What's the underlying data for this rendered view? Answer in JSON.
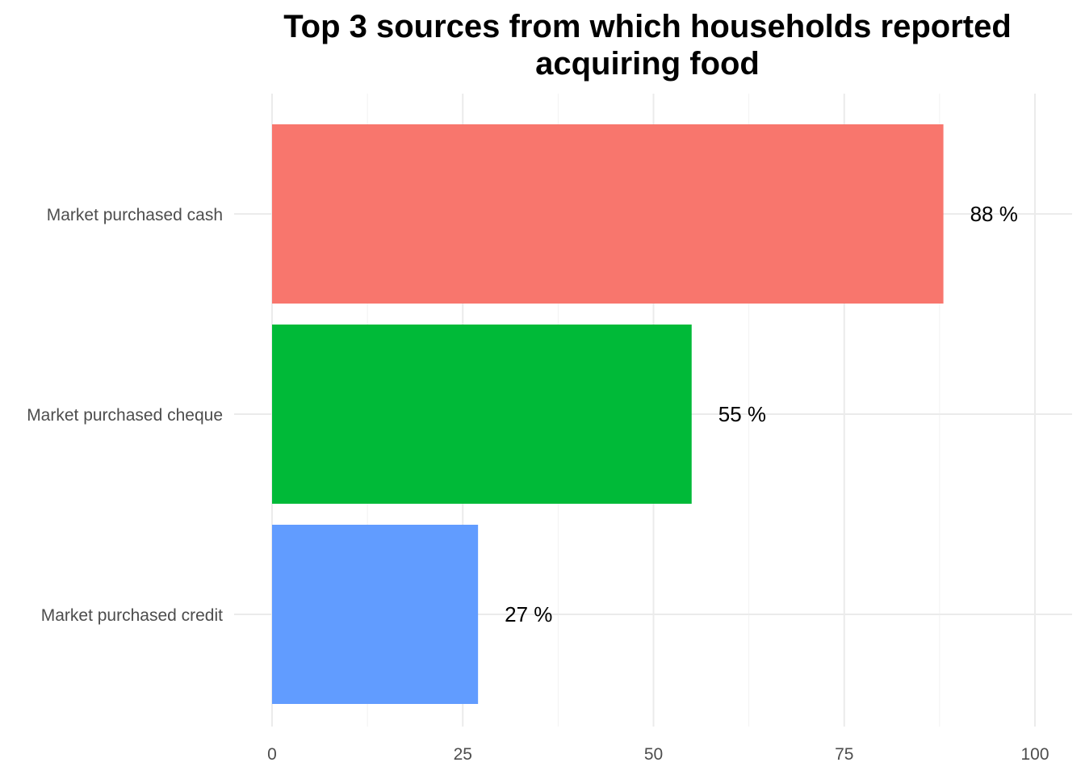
{
  "chart_data": {
    "type": "bar",
    "orientation": "horizontal",
    "title_lines": [
      "Top 3 sources from which households reported",
      "acquiring food"
    ],
    "categories": [
      "Market purchased cash",
      "Market purchased cheque",
      "Market purchased credit"
    ],
    "values": [
      88,
      55,
      27
    ],
    "data_labels": [
      "88 %",
      "55 %",
      "27 %"
    ],
    "colors": [
      "#F8766D",
      "#00BA38",
      "#619CFF"
    ],
    "xlim": [
      0,
      100
    ],
    "x_ticks": [
      0,
      25,
      50,
      75,
      100
    ],
    "x_tick_labels": [
      "0",
      "25",
      "50",
      "75",
      "100"
    ],
    "xlabel": "",
    "ylabel": "",
    "grid": true,
    "legend": "none"
  }
}
